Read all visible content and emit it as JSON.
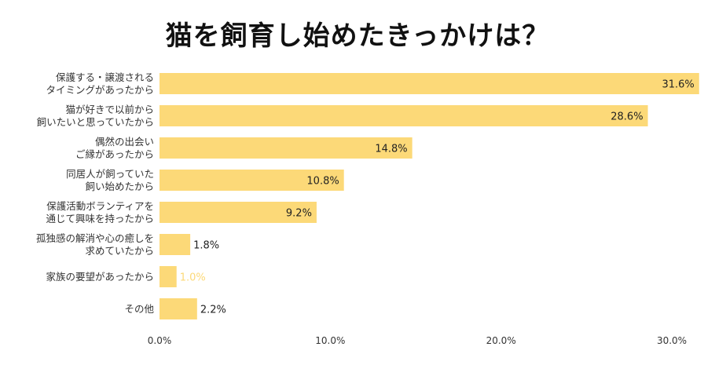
{
  "chart_data": {
    "type": "bar",
    "orientation": "horizontal",
    "title": "猫を飼育し始めたきっかけは？",
    "xlabel": "",
    "ylabel": "",
    "xlim": [
      0,
      30
    ],
    "ticks": [
      "0.0%",
      "10.0%",
      "20.0%",
      "30.0%"
    ],
    "tick_values": [
      0,
      10,
      20,
      30
    ],
    "categories": [
      [
        "保護する・譲渡される",
        "タイミングがあったから"
      ],
      [
        "猫が好きで以前から",
        "飼いたいと思っていたから"
      ],
      [
        "偶然の出会い",
        "ご縁があったから"
      ],
      [
        "同居人が飼っていた",
        "飼い始めたから"
      ],
      [
        "保護活動ボランティアを",
        "通じて興味を持ったから"
      ],
      [
        "孤独感の解消や心の癒しを",
        "求めていたから"
      ],
      [
        "家族の要望があったから"
      ],
      [
        "その他"
      ]
    ],
    "values": [
      31.6,
      28.6,
      14.8,
      10.8,
      9.2,
      1.8,
      1.0,
      2.2
    ],
    "value_labels": [
      "31.6%",
      "28.6%",
      "14.8%",
      "10.8%",
      "9.2%",
      "1.8%",
      "1.0%",
      "2.2%"
    ],
    "bar_color": "#FCD978",
    "label_color": "#222222",
    "faint_label_color": "#FCD978"
  }
}
